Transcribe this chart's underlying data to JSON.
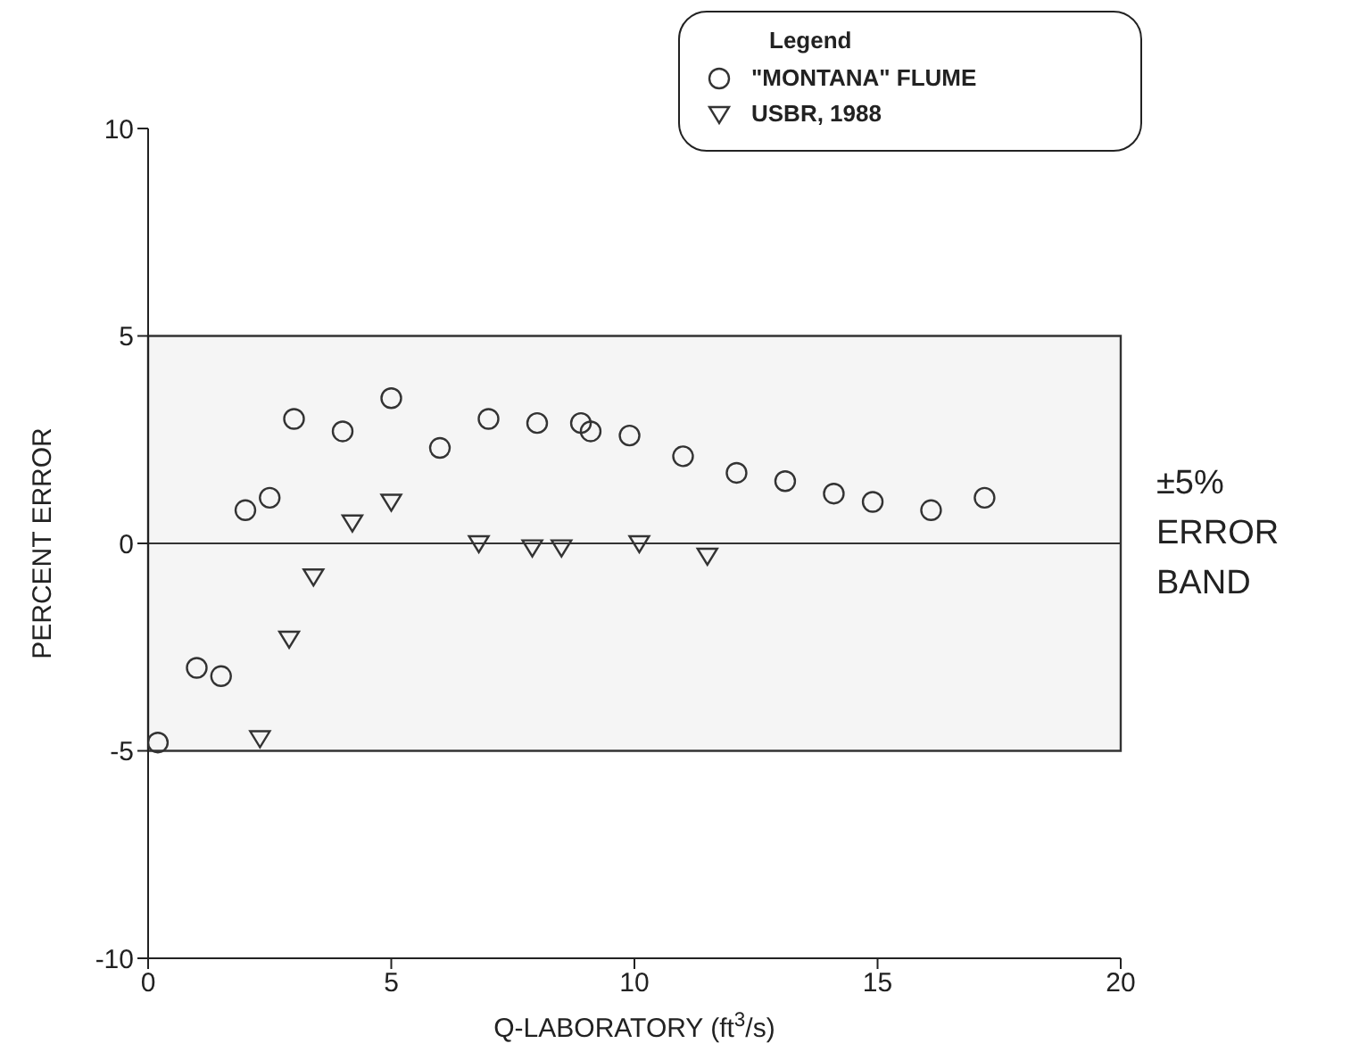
{
  "chart_data": {
    "type": "scatter",
    "xlabel": "Q-LABORATORY (ft$^{3}$/s)",
    "ylabel": "PERCENT ERROR",
    "legend_title": "Legend",
    "legend": "top right",
    "xlim": [
      0,
      20
    ],
    "xticks": [
      0,
      5,
      10,
      15,
      20
    ],
    "ylim": [
      -10,
      10
    ],
    "yticks": [
      -10,
      -5,
      0,
      5,
      10
    ],
    "grid": false,
    "series": [
      {
        "name": "\"MONTANA\" FLUME",
        "color": "#333333",
        "marker": "circle",
        "x": [
          0.2,
          1.0,
          1.5,
          2.0,
          2.5,
          3.0,
          4.0,
          5.0,
          6.0,
          7.0,
          8.0,
          8.9,
          9.1,
          9.9,
          11.0,
          12.1,
          13.1,
          14.1,
          14.9,
          16.1,
          17.2
        ],
        "values": [
          -4.8,
          -3.0,
          -3.2,
          0.8,
          1.1,
          3.0,
          2.7,
          3.5,
          2.3,
          3.0,
          2.9,
          2.9,
          2.7,
          2.6,
          2.1,
          1.7,
          1.5,
          1.2,
          1.0,
          0.8,
          1.1
        ]
      },
      {
        "name": "USBR, 1988",
        "color": "#333333",
        "marker": "triangle",
        "x": [
          2.3,
          2.9,
          3.4,
          4.2,
          5.0,
          6.8,
          7.9,
          8.5,
          10.1,
          11.5
        ],
        "values": [
          -4.7,
          -2.3,
          -0.8,
          0.5,
          1.0,
          0.0,
          -0.1,
          -0.1,
          0.0,
          -0.3
        ]
      }
    ],
    "ref_lines": [
      {
        "axis": "y",
        "value": 0,
        "color": "#333333"
      }
    ],
    "bands": [
      {
        "axis": "y",
        "from": -5,
        "to": 5,
        "label": "±5% ERROR BAND",
        "color": "#333333"
      }
    ]
  }
}
